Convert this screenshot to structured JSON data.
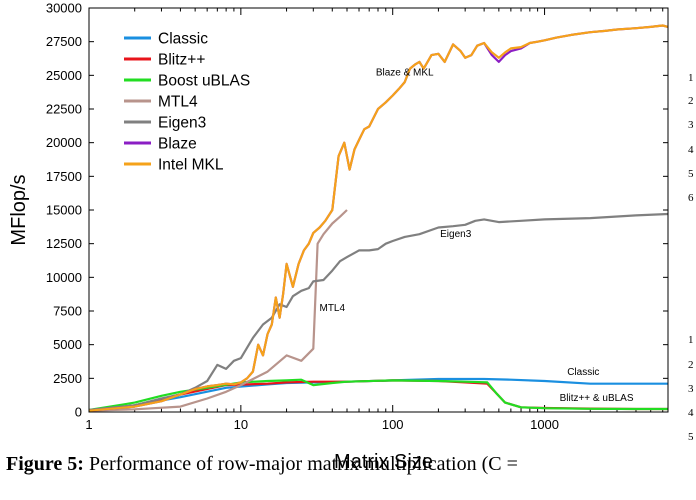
{
  "chart_data": {
    "type": "line",
    "title": "",
    "xlabel": "Matrix Size",
    "ylabel": "MFlop/s",
    "xscale": "log",
    "xlim": [
      1,
      6500
    ],
    "ylim": [
      0,
      30000
    ],
    "x_tick_labels": [
      "1",
      "10",
      "100",
      "1000"
    ],
    "x_tick_values": [
      1,
      10,
      100,
      1000
    ],
    "y_tick_values": [
      0,
      2500,
      5000,
      7500,
      10000,
      12500,
      15000,
      17500,
      20000,
      22500,
      25000,
      27500,
      30000
    ],
    "legend_position": "top-left",
    "series": [
      {
        "name": "Classic",
        "color": "#1a8fe0",
        "x": [
          1,
          2,
          4,
          8,
          15,
          20,
          30,
          50,
          100,
          200,
          400,
          600,
          1000,
          2000,
          4000,
          6500
        ],
        "y": [
          100,
          500,
          1100,
          1800,
          2050,
          2150,
          2200,
          2250,
          2350,
          2450,
          2450,
          2400,
          2300,
          2100,
          2100,
          2100
        ]
      },
      {
        "name": "Blitz++",
        "color": "#e8141b",
        "x": [
          1,
          2,
          4,
          8,
          15,
          20,
          30,
          50,
          100,
          200,
          300,
          420,
          480,
          550,
          700,
          1000,
          2000,
          4000,
          6500
        ],
        "y": [
          100,
          500,
          1300,
          2000,
          2100,
          2200,
          2250,
          2250,
          2350,
          2300,
          2200,
          2100,
          1400,
          700,
          350,
          300,
          250,
          220,
          220
        ]
      },
      {
        "name": "Boost uBLAS",
        "color": "#22dd22",
        "x": [
          1,
          2,
          3,
          4,
          6,
          10,
          15,
          20,
          25,
          30,
          40,
          50,
          100,
          200,
          300,
          420,
          480,
          550,
          700,
          1000,
          2000,
          4000,
          6500
        ],
        "y": [
          150,
          700,
          1200,
          1500,
          1800,
          2200,
          2300,
          2350,
          2400,
          2000,
          2150,
          2250,
          2350,
          2300,
          2250,
          2200,
          1400,
          700,
          350,
          280,
          240,
          220,
          220
        ]
      },
      {
        "name": "MTL4",
        "color": "#b8948c",
        "x": [
          1,
          2,
          4,
          6,
          8,
          10,
          15,
          20,
          25,
          30,
          32,
          35,
          40,
          45,
          50
        ],
        "y": [
          100,
          200,
          400,
          1000,
          1500,
          2000,
          3000,
          4200,
          3800,
          4700,
          12500,
          13200,
          14000,
          14500,
          15000
        ]
      },
      {
        "name": "Eigen3",
        "color": "#808080",
        "x": [
          1,
          2,
          3,
          4,
          5,
          6,
          7,
          8,
          9,
          10,
          12,
          14,
          16,
          18,
          20,
          22,
          25,
          28,
          30,
          35,
          40,
          45,
          50,
          60,
          70,
          80,
          90,
          100,
          120,
          150,
          200,
          250,
          300,
          350,
          400,
          500,
          700,
          1000,
          2000,
          4000,
          6500
        ],
        "y": [
          150,
          500,
          1000,
          1300,
          1800,
          2300,
          3500,
          3200,
          3800,
          4000,
          5500,
          6500,
          7000,
          8000,
          7800,
          8600,
          9000,
          9200,
          9700,
          9800,
          10500,
          11200,
          11500,
          12000,
          12000,
          12100,
          12500,
          12700,
          13000,
          13200,
          13700,
          13800,
          13900,
          14200,
          14300,
          14100,
          14200,
          14300,
          14400,
          14600,
          14700
        ]
      },
      {
        "name": "Blaze",
        "color": "#8b1ec4",
        "x": [
          1,
          2,
          3,
          4,
          5,
          6,
          7,
          8,
          9,
          10,
          11,
          12,
          13,
          14,
          15,
          16,
          17,
          18,
          19,
          20,
          22,
          24,
          26,
          28,
          30,
          33,
          36,
          40,
          44,
          48,
          52,
          56,
          60,
          65,
          70,
          80,
          90,
          100,
          110,
          120,
          130,
          140,
          150,
          160,
          180,
          200,
          220,
          250,
          280,
          300,
          330,
          360,
          400,
          450,
          500,
          550,
          600,
          700,
          800,
          900,
          1000,
          1200,
          1500,
          2000,
          2500,
          3000,
          4000,
          5000,
          6000,
          6500
        ],
        "y": [
          100,
          400,
          800,
          1300,
          1700,
          1900,
          2000,
          2100,
          2050,
          2200,
          2500,
          3000,
          5000,
          4200,
          5800,
          6500,
          8500,
          7000,
          8800,
          11000,
          9300,
          11000,
          12000,
          12500,
          13300,
          13700,
          14200,
          15000,
          19000,
          20000,
          18000,
          19500,
          20200,
          21000,
          21200,
          22500,
          23000,
          23500,
          24000,
          24500,
          25500,
          25800,
          26000,
          25500,
          26500,
          26600,
          26000,
          27300,
          26800,
          26300,
          26500,
          27200,
          27400,
          26500,
          26000,
          26500,
          26800,
          27000,
          27400,
          27500,
          27600,
          27800,
          28000,
          28200,
          28300,
          28400,
          28500,
          28600,
          28700,
          28600
        ]
      },
      {
        "name": "Intel MKL",
        "color": "#f5a21a",
        "x": [
          1,
          2,
          3,
          4,
          5,
          6,
          7,
          8,
          9,
          10,
          11,
          12,
          13,
          14,
          15,
          16,
          17,
          18,
          19,
          20,
          22,
          24,
          26,
          28,
          30,
          33,
          36,
          40,
          44,
          48,
          52,
          56,
          60,
          65,
          70,
          80,
          90,
          100,
          110,
          120,
          130,
          140,
          150,
          160,
          180,
          200,
          220,
          250,
          280,
          300,
          330,
          360,
          400,
          450,
          500,
          550,
          600,
          700,
          800,
          900,
          1000,
          1200,
          1500,
          2000,
          2500,
          3000,
          4000,
          5000,
          6000,
          6500
        ],
        "y": [
          100,
          400,
          800,
          1300,
          1700,
          1900,
          2000,
          2100,
          2050,
          2200,
          2500,
          3000,
          5000,
          4200,
          5800,
          6500,
          8500,
          7000,
          8800,
          11000,
          9300,
          11000,
          12000,
          12500,
          13300,
          13700,
          14200,
          15000,
          19000,
          20000,
          18000,
          19500,
          20200,
          21000,
          21200,
          22500,
          23000,
          23500,
          24000,
          24500,
          25500,
          25800,
          26000,
          25500,
          26500,
          26600,
          26000,
          27300,
          26800,
          26300,
          26500,
          27200,
          27400,
          26700,
          26300,
          26700,
          27000,
          27100,
          27400,
          27500,
          27600,
          27800,
          28000,
          28200,
          28300,
          28400,
          28500,
          28600,
          28700,
          28600
        ]
      }
    ],
    "annotations": [
      {
        "text": "Blaze & MKL",
        "x": 120,
        "y": 25000
      },
      {
        "text": "Eigen3",
        "x": 260,
        "y": 13000
      },
      {
        "text": "MTL4",
        "x": 40,
        "y": 7500
      },
      {
        "text": "Classic",
        "x": 1800,
        "y": 2750
      },
      {
        "text": "Blitz++ & uBLAS",
        "x": 2200,
        "y": 800
      }
    ]
  },
  "margin_numbers_right": [
    "1",
    "2",
    "3",
    "4",
    "5",
    "6",
    "1",
    "2",
    "3",
    "4",
    "5"
  ],
  "caption": {
    "figure_label": "Figure 5:",
    "text": "Performance of row-major matrix multiplication (C ="
  }
}
